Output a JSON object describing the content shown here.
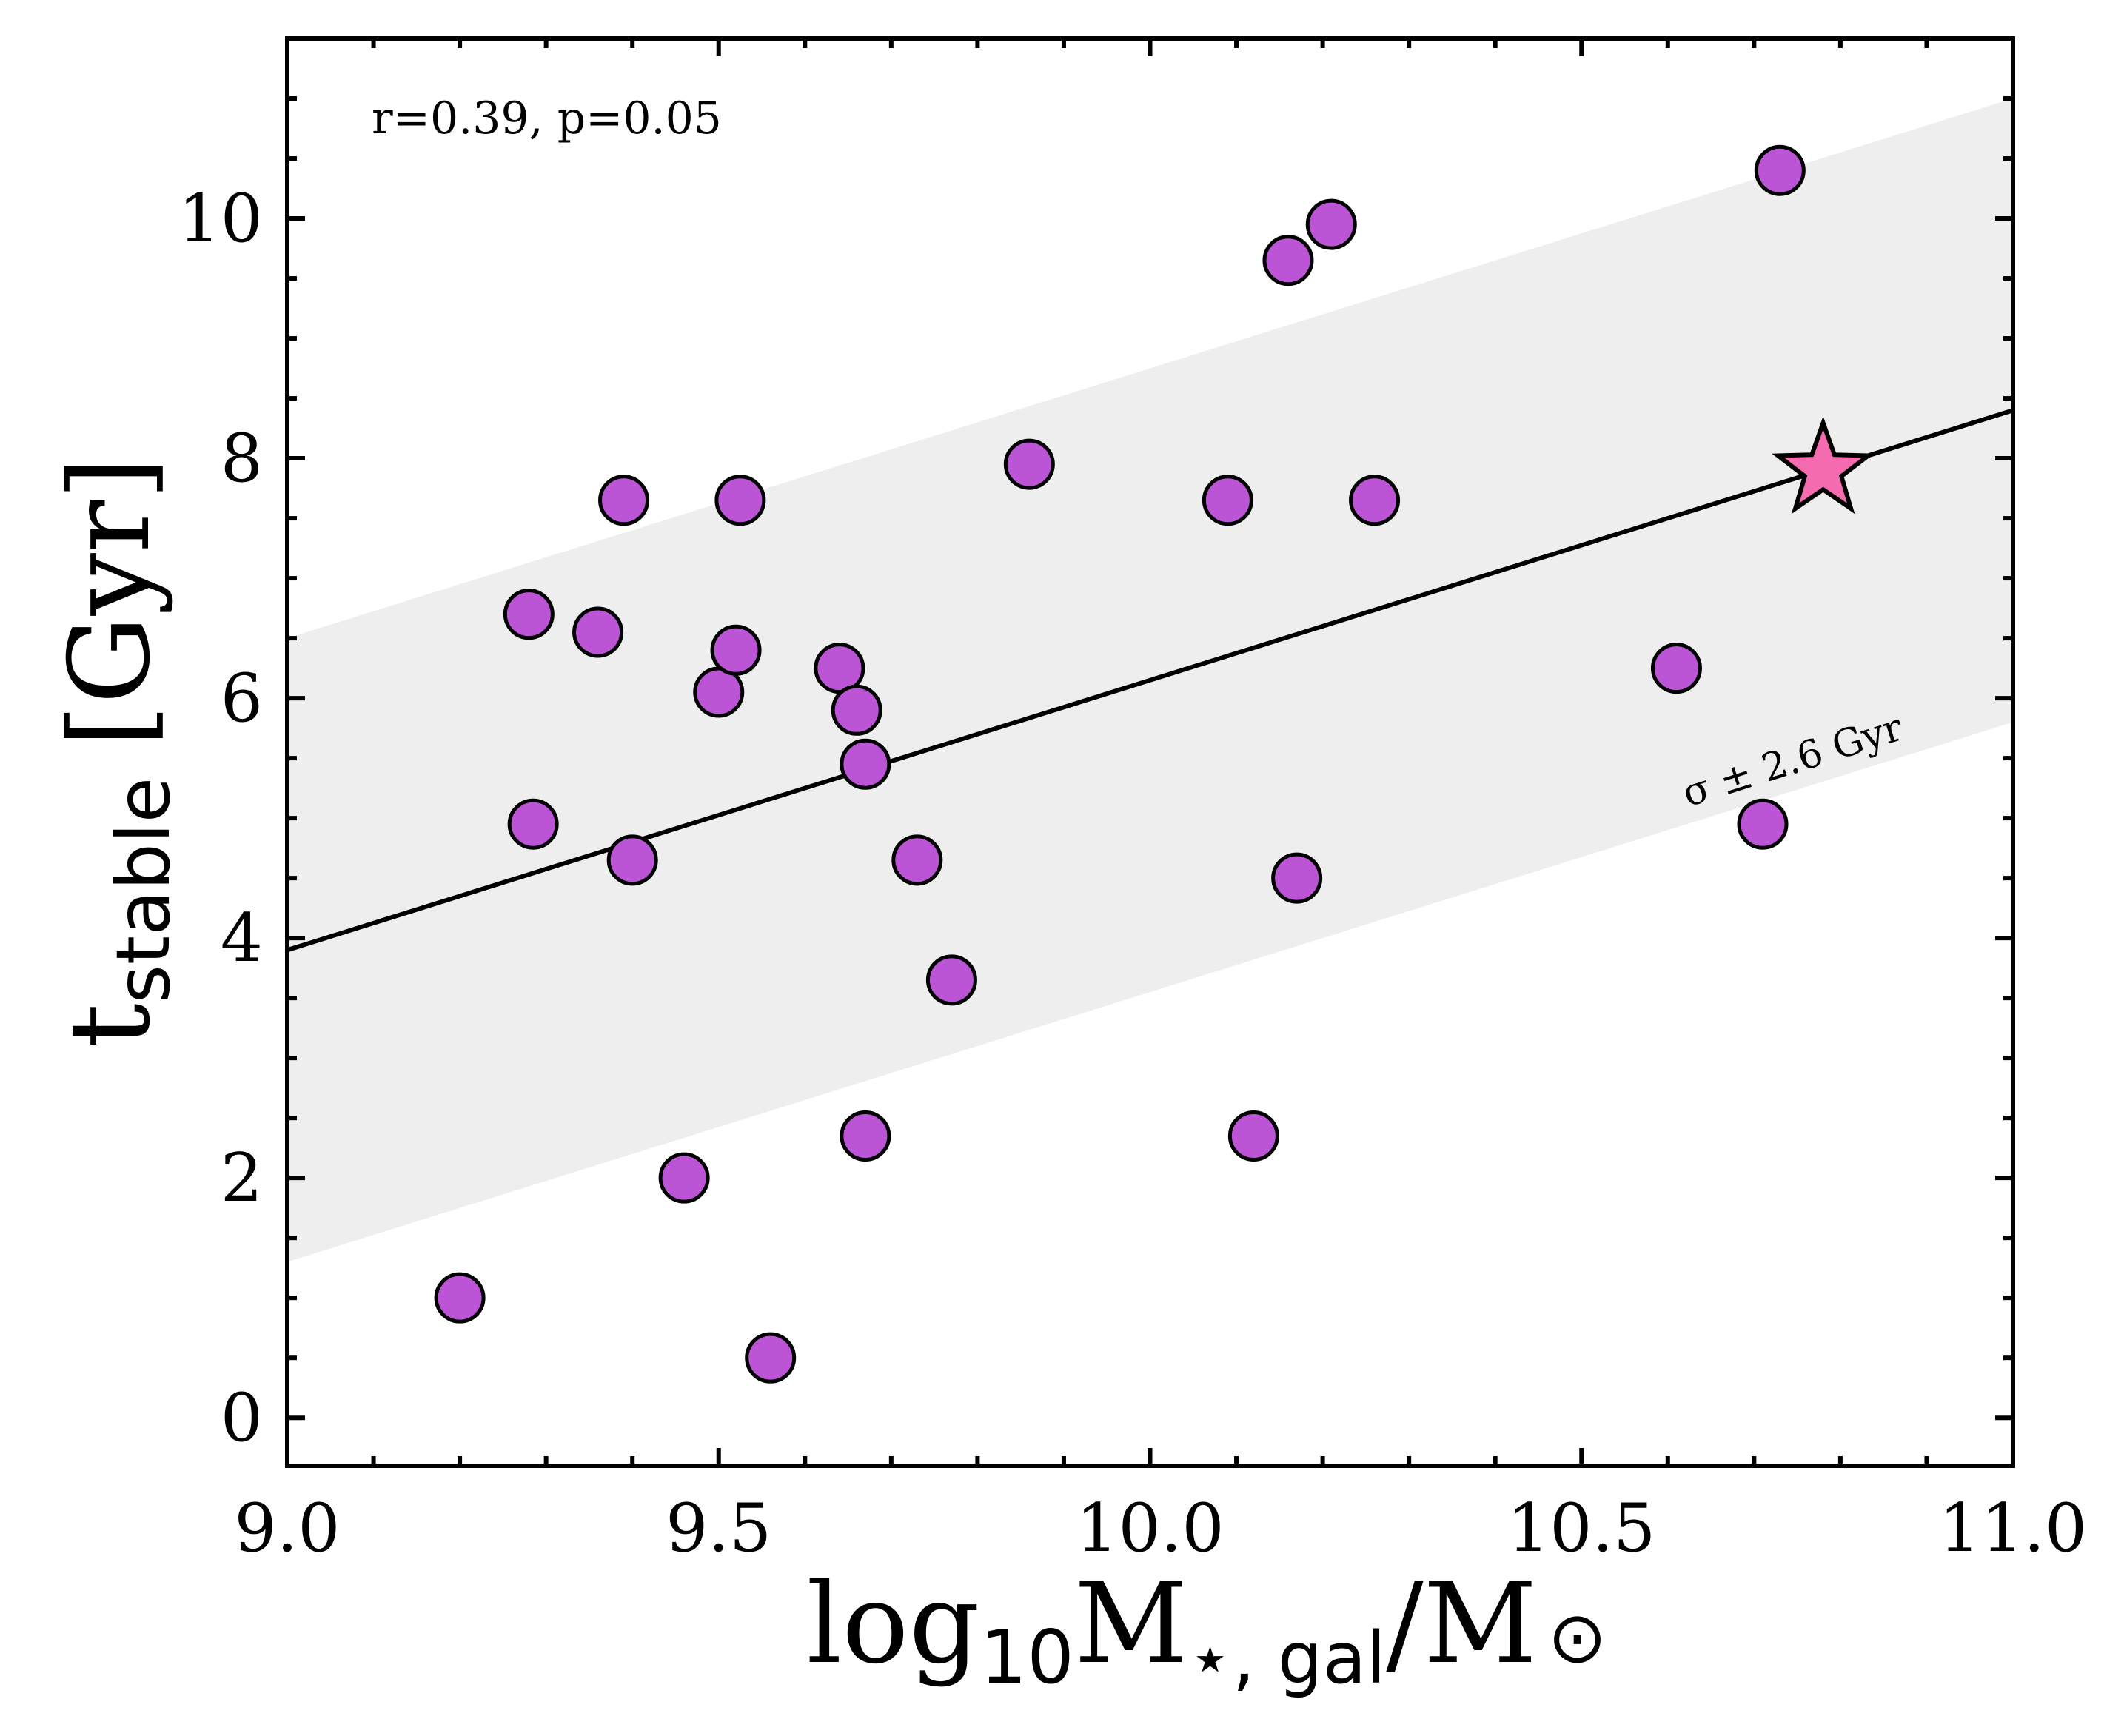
{
  "chart_data": {
    "type": "scatter",
    "annotation": "r=0.39, p=0.05",
    "band_label": "σ ± 2.6 Gyr",
    "xlabel": {
      "main": "log",
      "sub": "10",
      "mid": "M",
      "sub2": "⋆, gal",
      "tail": "/M",
      "sun": "⊙"
    },
    "ylabel": {
      "main": "t",
      "sub": "stable",
      "tail": "[Gyr]"
    },
    "xlim": [
      9.0,
      11.0
    ],
    "ylim": [
      -0.4,
      11.5
    ],
    "xticks": [
      9.0,
      9.5,
      10.0,
      10.5,
      11.0
    ],
    "xtick_labels": [
      "9.0",
      "9.5",
      "10.0",
      "10.5",
      "11.0"
    ],
    "yticks": [
      0,
      2,
      4,
      6,
      8,
      10
    ],
    "ytick_labels": [
      "0",
      "2",
      "4",
      "6",
      "8",
      "10"
    ],
    "fit_line": {
      "x": [
        9.0,
        11.0
      ],
      "y": [
        3.9,
        8.4
      ]
    },
    "band_sigma": 2.6,
    "points": [
      {
        "x": 9.2,
        "y": 1.0
      },
      {
        "x": 9.28,
        "y": 6.7
      },
      {
        "x": 9.285,
        "y": 4.95
      },
      {
        "x": 9.36,
        "y": 6.55
      },
      {
        "x": 9.39,
        "y": 7.65
      },
      {
        "x": 9.4,
        "y": 4.65
      },
      {
        "x": 9.46,
        "y": 2.0
      },
      {
        "x": 9.5,
        "y": 6.05
      },
      {
        "x": 9.52,
        "y": 6.4
      },
      {
        "x": 9.525,
        "y": 7.65
      },
      {
        "x": 9.56,
        "y": 0.5
      },
      {
        "x": 9.64,
        "y": 6.25
      },
      {
        "x": 9.66,
        "y": 5.9
      },
      {
        "x": 9.67,
        "y": 5.45
      },
      {
        "x": 9.67,
        "y": 2.35
      },
      {
        "x": 9.73,
        "y": 4.65
      },
      {
        "x": 9.77,
        "y": 3.65
      },
      {
        "x": 9.86,
        "y": 7.95
      },
      {
        "x": 10.09,
        "y": 7.65
      },
      {
        "x": 10.12,
        "y": 2.35
      },
      {
        "x": 10.16,
        "y": 9.65
      },
      {
        "x": 10.17,
        "y": 4.5
      },
      {
        "x": 10.21,
        "y": 9.95
      },
      {
        "x": 10.26,
        "y": 7.65
      },
      {
        "x": 10.61,
        "y": 6.25
      },
      {
        "x": 10.71,
        "y": 4.95
      },
      {
        "x": 10.73,
        "y": 10.4
      }
    ],
    "highlight": {
      "x": 10.78,
      "y": 7.9,
      "marker": "star"
    },
    "colors": {
      "point_fill": "#bb55d6",
      "point_edge": "#000000",
      "star_fill": "#f56bb0",
      "band_fill": "#eeeeee",
      "line": "#000000"
    }
  }
}
